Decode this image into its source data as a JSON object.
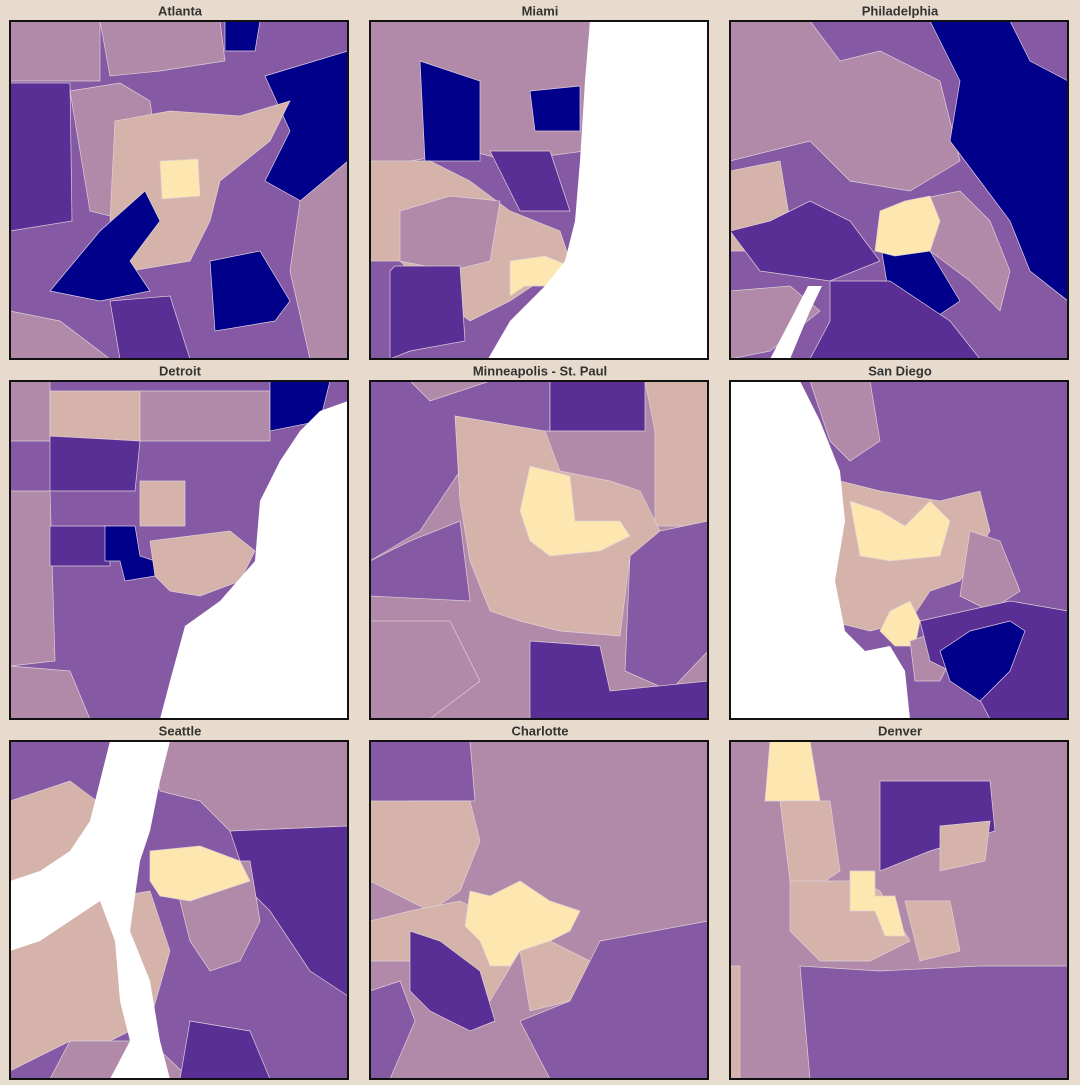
{
  "maps": [
    {
      "title": "Atlanta"
    },
    {
      "title": "Miami"
    },
    {
      "title": "Philadelphia"
    },
    {
      "title": "Detroit"
    },
    {
      "title": "Minneapolis - St. Paul"
    },
    {
      "title": "San Diego"
    },
    {
      "title": "Seattle"
    },
    {
      "title": "Charlotte"
    },
    {
      "title": "Denver"
    }
  ]
}
